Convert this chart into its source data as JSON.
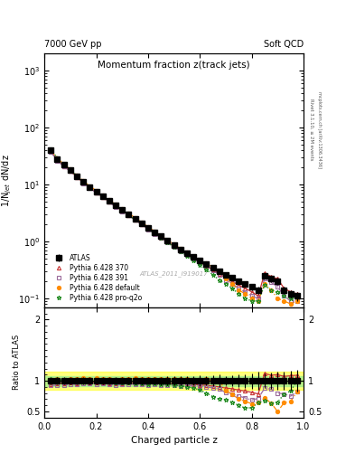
{
  "title_top_left": "7000 GeV pp",
  "title_top_right": "Soft QCD",
  "main_title": "Momentum fraction z(track jets)",
  "ylabel_main": "1/N$_{jet}$ dN/dz",
  "ylabel_ratio": "Ratio to ATLAS",
  "xlabel": "Charged particle z",
  "right_label_1": "Rivet 3.1.10, ≥ 2M events",
  "right_label_2": "mcplots.cern.ch [arXiv:1306.3436]",
  "watermark": "ATLAS_2011_I919017",
  "xlim": [
    0.0,
    1.0
  ],
  "ylim_main": [
    0.07,
    2000
  ],
  "ylim_ratio": [
    0.4,
    2.2
  ],
  "atlas_x": [
    0.025,
    0.05,
    0.075,
    0.1,
    0.125,
    0.15,
    0.175,
    0.2,
    0.225,
    0.25,
    0.275,
    0.3,
    0.325,
    0.35,
    0.375,
    0.4,
    0.425,
    0.45,
    0.475,
    0.5,
    0.525,
    0.55,
    0.575,
    0.6,
    0.625,
    0.65,
    0.675,
    0.7,
    0.725,
    0.75,
    0.775,
    0.8,
    0.825,
    0.85,
    0.875,
    0.9,
    0.925,
    0.95,
    0.975
  ],
  "atlas_y": [
    40,
    28,
    22,
    18,
    14,
    11,
    9,
    7.5,
    6.2,
    5.2,
    4.3,
    3.6,
    3.0,
    2.5,
    2.1,
    1.75,
    1.45,
    1.22,
    1.02,
    0.86,
    0.73,
    0.62,
    0.53,
    0.46,
    0.4,
    0.35,
    0.3,
    0.26,
    0.23,
    0.2,
    0.18,
    0.16,
    0.14,
    0.25,
    0.22,
    0.2,
    0.14,
    0.12,
    0.11
  ],
  "atlas_yerr": [
    2,
    1.5,
    1.2,
    1.0,
    0.8,
    0.6,
    0.5,
    0.4,
    0.35,
    0.3,
    0.25,
    0.2,
    0.18,
    0.15,
    0.12,
    0.1,
    0.09,
    0.08,
    0.07,
    0.06,
    0.05,
    0.05,
    0.04,
    0.04,
    0.03,
    0.03,
    0.03,
    0.02,
    0.02,
    0.02,
    0.02,
    0.02,
    0.02,
    0.03,
    0.03,
    0.03,
    0.02,
    0.02,
    0.02
  ],
  "py370_x": [
    0.025,
    0.05,
    0.075,
    0.1,
    0.125,
    0.15,
    0.175,
    0.2,
    0.225,
    0.25,
    0.275,
    0.3,
    0.325,
    0.35,
    0.375,
    0.4,
    0.425,
    0.45,
    0.475,
    0.5,
    0.525,
    0.55,
    0.575,
    0.6,
    0.625,
    0.65,
    0.675,
    0.7,
    0.725,
    0.75,
    0.775,
    0.8,
    0.825,
    0.85,
    0.875,
    0.9,
    0.925,
    0.95,
    0.975
  ],
  "py370_y": [
    38,
    27,
    21,
    17.5,
    13.5,
    10.8,
    8.8,
    7.3,
    6.0,
    5.0,
    4.1,
    3.45,
    2.9,
    2.42,
    2.02,
    1.68,
    1.4,
    1.17,
    0.98,
    0.82,
    0.7,
    0.59,
    0.5,
    0.43,
    0.37,
    0.32,
    0.27,
    0.23,
    0.2,
    0.17,
    0.15,
    0.13,
    0.11,
    0.28,
    0.24,
    0.22,
    0.15,
    0.13,
    0.12
  ],
  "py391_x": [
    0.025,
    0.05,
    0.075,
    0.1,
    0.125,
    0.15,
    0.175,
    0.2,
    0.225,
    0.25,
    0.275,
    0.3,
    0.325,
    0.35,
    0.375,
    0.4,
    0.425,
    0.45,
    0.475,
    0.5,
    0.525,
    0.55,
    0.575,
    0.6,
    0.625,
    0.65,
    0.675,
    0.7,
    0.725,
    0.75,
    0.775,
    0.8,
    0.825,
    0.85,
    0.875,
    0.9,
    0.925,
    0.95,
    0.975
  ],
  "py391_y": [
    37,
    26,
    20.5,
    17,
    13.2,
    10.5,
    8.6,
    7.1,
    5.9,
    4.9,
    4.0,
    3.38,
    2.83,
    2.36,
    1.97,
    1.63,
    1.36,
    1.14,
    0.95,
    0.8,
    0.67,
    0.57,
    0.49,
    0.42,
    0.36,
    0.31,
    0.26,
    0.21,
    0.18,
    0.15,
    0.13,
    0.11,
    0.1,
    0.22,
    0.19,
    0.16,
    0.11,
    0.09,
    0.09
  ],
  "pydef_x": [
    0.025,
    0.05,
    0.075,
    0.1,
    0.125,
    0.15,
    0.175,
    0.2,
    0.225,
    0.25,
    0.275,
    0.3,
    0.325,
    0.35,
    0.375,
    0.4,
    0.425,
    0.45,
    0.475,
    0.5,
    0.525,
    0.55,
    0.575,
    0.6,
    0.625,
    0.65,
    0.675,
    0.7,
    0.725,
    0.75,
    0.775,
    0.8,
    0.825,
    0.85,
    0.875,
    0.9,
    0.925,
    0.95,
    0.975
  ],
  "pydef_y": [
    40,
    29,
    22.5,
    18.5,
    14.5,
    11.5,
    9.3,
    7.8,
    6.4,
    5.4,
    4.4,
    3.7,
    3.1,
    2.6,
    2.16,
    1.8,
    1.5,
    1.26,
    1.05,
    0.89,
    0.75,
    0.64,
    0.54,
    0.47,
    0.41,
    0.35,
    0.3,
    0.22,
    0.18,
    0.14,
    0.12,
    0.1,
    0.09,
    0.18,
    0.14,
    0.1,
    0.09,
    0.08,
    0.09
  ],
  "pyproq2o_x": [
    0.025,
    0.05,
    0.075,
    0.1,
    0.125,
    0.15,
    0.175,
    0.2,
    0.225,
    0.25,
    0.275,
    0.3,
    0.325,
    0.35,
    0.375,
    0.4,
    0.425,
    0.45,
    0.475,
    0.5,
    0.525,
    0.55,
    0.575,
    0.6,
    0.625,
    0.65,
    0.675,
    0.7,
    0.725,
    0.75,
    0.775,
    0.8,
    0.825,
    0.85,
    0.875,
    0.9,
    0.925,
    0.95,
    0.975
  ],
  "pyproq2o_y": [
    41,
    29,
    22,
    18,
    14,
    11,
    9.0,
    7.4,
    6.1,
    5.1,
    4.2,
    3.5,
    2.9,
    2.4,
    2.0,
    1.66,
    1.38,
    1.15,
    0.96,
    0.8,
    0.67,
    0.56,
    0.47,
    0.39,
    0.32,
    0.26,
    0.21,
    0.18,
    0.15,
    0.12,
    0.1,
    0.09,
    0.09,
    0.17,
    0.14,
    0.13,
    0.11,
    0.1,
    0.11
  ],
  "color_atlas": "#000000",
  "color_py370": "#C83232",
  "color_py391": "#9B6B9B",
  "color_pydef": "#FF8C00",
  "color_pyproq2o": "#228B22",
  "band_yellow_lo": 0.85,
  "band_yellow_hi": 1.15,
  "band_green_lo": 0.92,
  "band_green_hi": 1.08
}
